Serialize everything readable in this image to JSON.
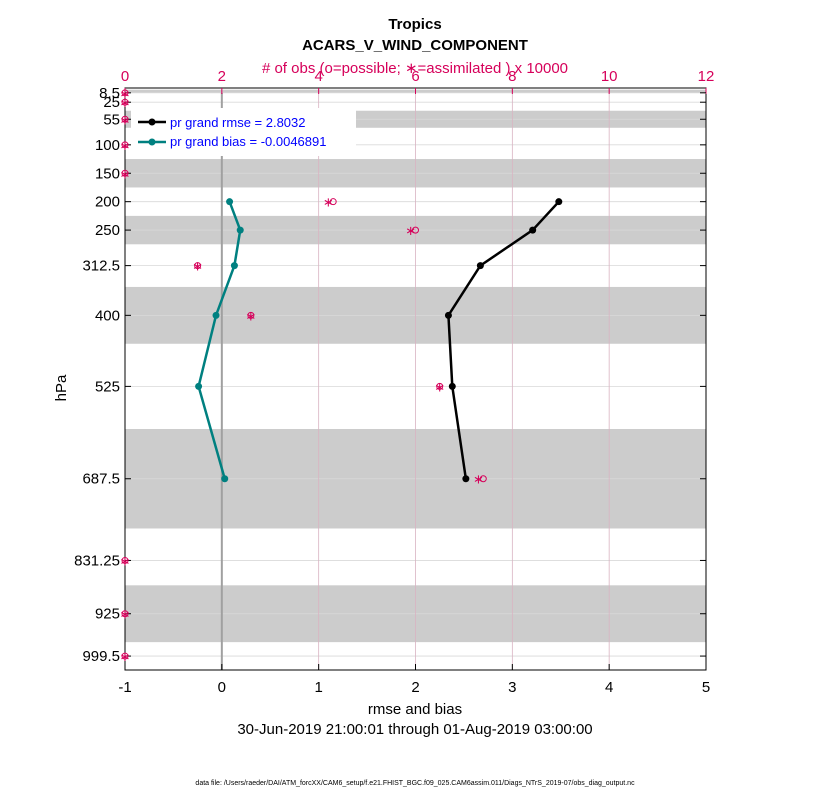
{
  "chart_data": {
    "type": "line",
    "title": "Tropics",
    "subtitle": "ACARS_V_WIND_COMPONENT",
    "top_axis_label": "# of obs (o=possible; ∗=assimilated ) x 10000",
    "xlabel": "rmse and bias",
    "ylabel": "hPa",
    "date_range": "30-Jun-2019 21:00:01 through 01-Aug-2019 03:00:00",
    "footer": "data file: /Users/raeder/DAI/ATM_forcXX/CAM6_setup/f.e21.FHIST_BGC.f09_025.CAM6assim.011/Diags_NTrS_2019-07/obs_diag_output.nc",
    "xlim": [
      -1,
      5
    ],
    "x_ticks": [
      -1,
      0,
      1,
      2,
      3,
      4,
      5
    ],
    "top_xlim": [
      0,
      12
    ],
    "top_ticks": [
      0,
      2,
      4,
      6,
      8,
      10,
      12
    ],
    "y_ticks": [
      8.5,
      25,
      55,
      100,
      150,
      200,
      250,
      312.5,
      400,
      525,
      687.5,
      831.25,
      925,
      999.5
    ],
    "y_tick_labels": [
      "8.5",
      "25",
      "55",
      "100",
      "150",
      "200",
      "250",
      "312.5",
      "400",
      "525",
      "687.5",
      "831.25",
      "925",
      "999.5"
    ],
    "y_reversed": true,
    "grid": true,
    "legend_position": "top-left",
    "bands": [
      [
        3,
        8
      ],
      [
        40,
        70
      ],
      [
        125,
        175
      ],
      [
        225,
        275
      ],
      [
        350,
        450
      ],
      [
        600,
        775
      ],
      [
        875,
        975
      ]
    ],
    "series": [
      {
        "name": "pr grand rmse = 2.8032",
        "color": "#000000",
        "points": [
          {
            "x": 3.48,
            "y": 200
          },
          {
            "x": 3.21,
            "y": 250
          },
          {
            "x": 2.67,
            "y": 312.5
          },
          {
            "x": 2.34,
            "y": 400
          },
          {
            "x": 2.38,
            "y": 525
          },
          {
            "x": 2.52,
            "y": 687.5
          }
        ]
      },
      {
        "name": "pr grand bias = -0.0046891",
        "color": "#008080",
        "points": [
          {
            "x": 0.08,
            "y": 200
          },
          {
            "x": 0.19,
            "y": 250
          },
          {
            "x": 0.13,
            "y": 312.5
          },
          {
            "x": -0.06,
            "y": 400
          },
          {
            "x": -0.24,
            "y": 525
          },
          {
            "x": 0.03,
            "y": 687.5
          }
        ]
      }
    ],
    "obs_counts": [
      {
        "level": 8.5,
        "possible": 0.0,
        "assimilated": 0.0
      },
      {
        "level": 25,
        "possible": 0.0,
        "assimilated": 0.0
      },
      {
        "level": 55,
        "possible": 0.0,
        "assimilated": 0.0
      },
      {
        "level": 100,
        "possible": 0.0,
        "assimilated": 0.0
      },
      {
        "level": 150,
        "possible": 0.0,
        "assimilated": 0.0
      },
      {
        "level": 200,
        "possible": 4.3,
        "assimilated": 4.2
      },
      {
        "level": 250,
        "possible": 6.0,
        "assimilated": 5.9
      },
      {
        "level": 312.5,
        "possible": 1.5,
        "assimilated": 1.5
      },
      {
        "level": 400,
        "possible": 2.6,
        "assimilated": 2.6
      },
      {
        "level": 525,
        "possible": 6.5,
        "assimilated": 6.5
      },
      {
        "level": 687.5,
        "possible": 7.4,
        "assimilated": 7.3
      },
      {
        "level": 831.25,
        "possible": 0.0,
        "assimilated": 0.0
      },
      {
        "level": 925,
        "possible": 0.0,
        "assimilated": 0.0
      },
      {
        "level": 999.5,
        "possible": 0.0,
        "assimilated": 0.0
      }
    ],
    "colors": {
      "count_axis": "#d6005a",
      "legend_text": "#0000ff",
      "band": "#cccccc",
      "zero_line": "#a0a0a0",
      "grid_vertical": "#d9b3c2",
      "grid_horizontal": "#d9d9d9"
    }
  }
}
